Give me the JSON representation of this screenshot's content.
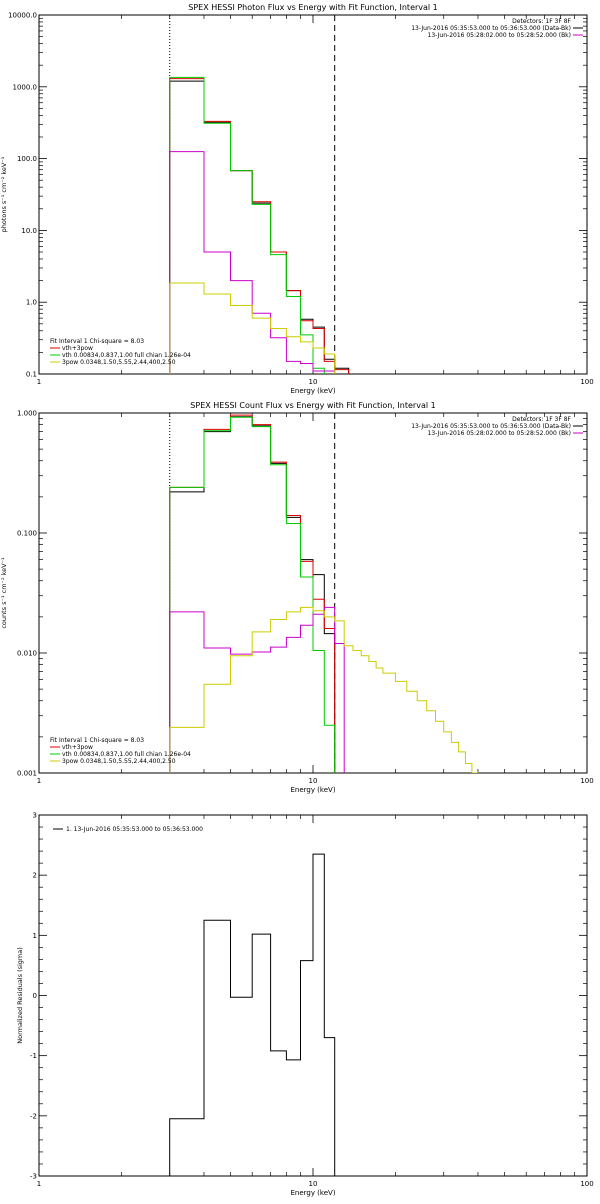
{
  "chart_data": [
    {
      "type": "line",
      "title": "SPEX HESSI Photon Flux vs Energy with Fit Function, Interval 1",
      "xlabel": "Energy (keV)",
      "ylabel": "photons s⁻¹ cm⁻² keV⁻¹",
      "xscale": "log",
      "yscale": "log",
      "xlim": [
        1,
        100
      ],
      "ylim": [
        0.1,
        10000
      ],
      "xticks": [
        {
          "v": 1,
          "label": "1"
        },
        {
          "v": 10,
          "label": "10"
        },
        {
          "v": 100,
          "label": "100"
        }
      ],
      "yticks": [
        {
          "v": 0.1,
          "label": "0.1"
        },
        {
          "v": 1,
          "label": "1.0"
        },
        {
          "v": 10,
          "label": "10.0"
        },
        {
          "v": 100,
          "label": "100.0"
        },
        {
          "v": 1000,
          "label": "1000.0"
        },
        {
          "v": 10000,
          "label": "10000.0"
        }
      ],
      "vlines": [
        {
          "x": 3.0,
          "style": "dotted"
        },
        {
          "x": 12.0,
          "style": "dashed"
        }
      ],
      "legend_top_right": {
        "position": "top-right",
        "header": "Detectors: 1F 3F 8F",
        "lines": [
          {
            "text": "13-Jun-2016 05:35:53.000 to 05:36:53.000 (Data-Bk)",
            "color": "#000000"
          },
          {
            "text": "13-Jun-2016 05:28:02.000 to 05:28:52.000 (Bk)",
            "color": "#cc00cc"
          }
        ]
      },
      "legend_bottom_left": {
        "position": "bottom-left",
        "header": "Fit Interval 1   Chi-square = 8.03",
        "lines": [
          {
            "text": "vth+3pow",
            "color": "#dd0000"
          },
          {
            "text": "vth 0.00834,0.837,1.00  full chian 1.26e-04",
            "color": "#00cc00"
          },
          {
            "text": "3pow 0.0348,1.50,5.55,2.44,400,2.50",
            "color": "#cccc00"
          }
        ]
      },
      "edges": [
        3.0,
        4.0,
        5.0,
        6.0,
        7.0,
        8.0,
        9.0,
        10.0,
        11.0,
        12.0,
        13.5
      ],
      "series": [
        {
          "color": "#000000",
          "values": [
            1200,
            320,
            68,
            24,
            5.0,
            1.45,
            0.58,
            0.45,
            0.16,
            0.12
          ]
        },
        {
          "color": "#dd0000",
          "values": [
            1300,
            330,
            68,
            25,
            5.0,
            1.45,
            0.55,
            0.43,
            0.15,
            0.115
          ]
        },
        {
          "color": "#00cc00",
          "values": [
            1350,
            310,
            68,
            23,
            4.6,
            1.2,
            0.35,
            0.12,
            0.09,
            null
          ]
        },
        {
          "color": "#cc00cc",
          "values": [
            125,
            5.0,
            2.0,
            0.7,
            0.32,
            0.15,
            0.14,
            0.11,
            0.11,
            null
          ]
        },
        {
          "color": "#cccc00",
          "values": [
            1.85,
            1.3,
            0.9,
            0.6,
            0.43,
            0.33,
            0.28,
            0.23,
            0.19,
            null
          ]
        }
      ]
    },
    {
      "type": "line",
      "title": "SPEX HESSI Count Flux vs Energy with Fit Function, Interval 1",
      "xlabel": "Energy (keV)",
      "ylabel": "counts s⁻¹ cm⁻² keV⁻¹",
      "xscale": "log",
      "yscale": "log",
      "xlim": [
        1,
        100
      ],
      "ylim": [
        0.001,
        1.0
      ],
      "xticks": [
        {
          "v": 1,
          "label": "1"
        },
        {
          "v": 10,
          "label": "10"
        },
        {
          "v": 100,
          "label": "100"
        }
      ],
      "yticks": [
        {
          "v": 0.001,
          "label": "0.001"
        },
        {
          "v": 0.01,
          "label": "0.010"
        },
        {
          "v": 0.1,
          "label": "0.100"
        },
        {
          "v": 1,
          "label": "1.000"
        }
      ],
      "vlines": [
        {
          "x": 3.0,
          "style": "dotted"
        },
        {
          "x": 12.0,
          "style": "dashed"
        }
      ],
      "legend_top_right": {
        "position": "top-right",
        "header": "Detectors: 1F 3F 8F",
        "lines": [
          {
            "text": "13-Jun-2016 05:35:53.000 to 05:36:53.000 (Data-Bk)",
            "color": "#000000"
          },
          {
            "text": "13-Jun-2016 05:28:02.000 to 05:28:52.000 (Bk)",
            "color": "#cc00cc"
          }
        ]
      },
      "legend_bottom_left": {
        "position": "bottom-left",
        "header": "Fit Interval 1   Chi-square = 8.03",
        "lines": [
          {
            "text": "vth+3pow",
            "color": "#dd0000"
          },
          {
            "text": "vth 0.00834,0.837,1.00  full chian 1.26e-04",
            "color": "#00cc00"
          },
          {
            "text": "3pow 0.0348,1.50,5.55,2.44,400,2.50",
            "color": "#cccc00"
          }
        ]
      },
      "series": [
        {
          "color": "#000000",
          "edges": [
            3.0,
            4.0,
            5.0,
            6.0,
            7.0,
            8.0,
            9.0,
            10.0,
            11.0,
            12.0
          ],
          "values": [
            0.22,
            0.7,
            0.93,
            0.78,
            0.38,
            0.135,
            0.06,
            0.045,
            0.0145
          ]
        },
        {
          "color": "#dd0000",
          "edges": [
            3.0,
            4.0,
            5.0,
            6.0,
            7.0,
            8.0,
            9.0,
            10.0,
            11.0,
            12.0
          ],
          "values": [
            0.24,
            0.73,
            0.96,
            0.8,
            0.39,
            0.14,
            0.058,
            0.028,
            0.016
          ]
        },
        {
          "color": "#00cc00",
          "edges": [
            3.0,
            4.0,
            5.0,
            6.0,
            7.0,
            8.0,
            9.0,
            10.0,
            11.0,
            12.0
          ],
          "values": [
            0.24,
            0.71,
            0.92,
            0.77,
            0.37,
            0.12,
            0.043,
            0.0105,
            0.0025
          ]
        },
        {
          "color": "#cc00cc",
          "edges": [
            3.0,
            4.0,
            5.0,
            6.0,
            7.0,
            8.0,
            9.0,
            10.0,
            11.0,
            12.0,
            13.0
          ],
          "values": [
            0.022,
            0.011,
            0.0098,
            0.0102,
            0.0112,
            0.0135,
            0.017,
            0.021,
            0.024,
            0.012
          ]
        },
        {
          "color": "#cccc00",
          "edges": [
            3.0,
            4.0,
            5.0,
            6.0,
            7.0,
            8.0,
            9.0,
            10.0,
            11.0,
            12.0,
            13.0,
            14.0,
            15.0,
            16.0,
            17.0,
            18.0,
            20.0,
            22.0,
            24.0,
            26.0,
            28.0,
            30.0,
            32.0,
            34.0,
            36.0,
            38.0,
            40.0
          ],
          "values": [
            0.0024,
            0.0055,
            0.0095,
            0.015,
            0.019,
            0.022,
            0.024,
            0.0225,
            0.02,
            0.0185,
            0.0115,
            0.0105,
            0.0095,
            0.0085,
            0.0075,
            0.0068,
            0.0058,
            0.0048,
            0.004,
            0.0033,
            0.0027,
            0.0022,
            0.0018,
            0.0015,
            0.0012,
            0.001
          ]
        }
      ]
    },
    {
      "type": "line",
      "title": "",
      "xlabel": "Energy (keV)",
      "ylabel": "Normalized Residuals (sigma)",
      "xscale": "log",
      "yscale": "linear",
      "xlim": [
        1,
        100
      ],
      "ylim": [
        -3,
        3
      ],
      "xticks": [
        {
          "v": 1,
          "label": "1"
        },
        {
          "v": 10,
          "label": "10"
        },
        {
          "v": 100,
          "label": "100"
        }
      ],
      "yticks": [
        {
          "v": -3,
          "label": "-3"
        },
        {
          "v": -2,
          "label": "-2"
        },
        {
          "v": -1,
          "label": "-1"
        },
        {
          "v": 0,
          "label": "0"
        },
        {
          "v": 1,
          "label": "1"
        },
        {
          "v": 2,
          "label": "2"
        },
        {
          "v": 3,
          "label": "3"
        }
      ],
      "legend": {
        "position": "top-left",
        "text": "1. 13-Jun-2016 05:35:53.000 to 05:36:53.000"
      },
      "edges": [
        3.0,
        4.0,
        5.0,
        6.0,
        7.0,
        8.0,
        9.0,
        10.0,
        11.0,
        12.0
      ],
      "series": [
        {
          "color": "#000000",
          "values": [
            -2.05,
            1.25,
            -0.03,
            1.02,
            -0.92,
            -1.07,
            0.58,
            2.35,
            -0.7
          ]
        }
      ]
    }
  ]
}
